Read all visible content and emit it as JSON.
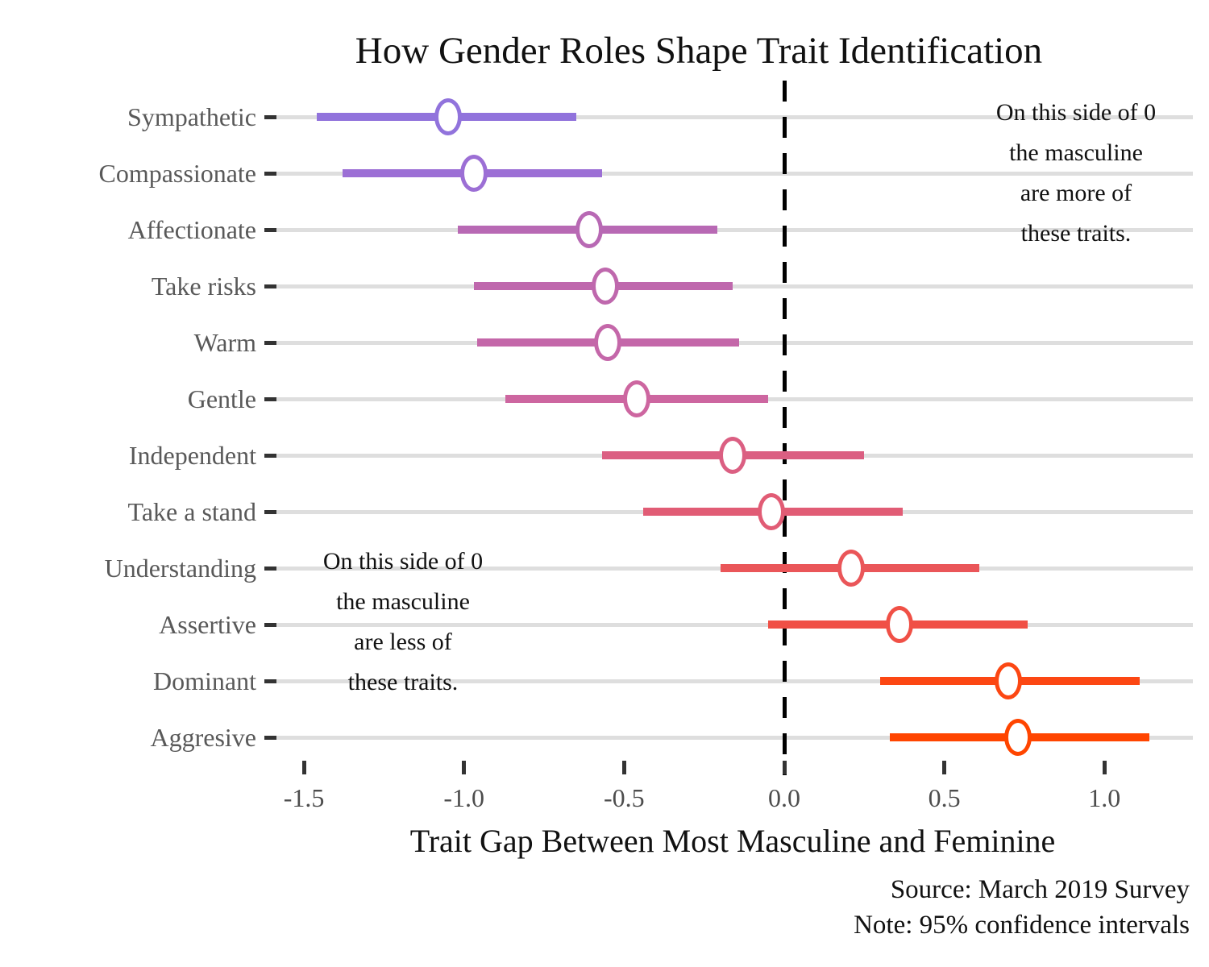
{
  "title": "How Gender Roles Shape Trait Identification",
  "xlabel": "Trait Gap Between Most Masculine and Feminine",
  "caption": {
    "source": "Source: March 2019 Survey",
    "note": "Note: 95% confidence intervals"
  },
  "annotations": {
    "right": [
      "On this side of 0",
      "the masculine",
      "are more of",
      "these traits."
    ],
    "left": [
      "On this side of 0",
      "the masculine",
      "are less of",
      "these traits."
    ]
  },
  "chart_data": {
    "type": "scatter",
    "subtype": "horizontal-dotplot-with-confidence-intervals",
    "title": "How Gender Roles Shape Trait Identification",
    "xlabel": "Trait Gap Between Most Masculine and Feminine",
    "xlim": [
      -1.62,
      1.28
    ],
    "grid": true,
    "legend": false,
    "zero_reference_line": 0,
    "xticks": [
      {
        "value": -1.5,
        "label": "-1.5"
      },
      {
        "value": -1.0,
        "label": "-1.0"
      },
      {
        "value": -0.5,
        "label": "-0.5"
      },
      {
        "value": 0.0,
        "label": "0.0"
      },
      {
        "value": 0.5,
        "label": "0.5"
      },
      {
        "value": 1.0,
        "label": "1.0"
      }
    ],
    "categories": [
      "Sympathetic",
      "Compassionate",
      "Affectionate",
      "Take risks",
      "Warm",
      "Gentle",
      "Independent",
      "Take a stand",
      "Understanding",
      "Assertive",
      "Dominant",
      "Aggresive"
    ],
    "points": [
      {
        "trait": "Sympathetic",
        "estimate": -1.05,
        "ci_low": -1.46,
        "ci_high": -0.65,
        "color": "#9173DC"
      },
      {
        "trait": "Compassionate",
        "estimate": -0.97,
        "ci_low": -1.38,
        "ci_high": -0.57,
        "color": "#9C6FD5"
      },
      {
        "trait": "Affectionate",
        "estimate": -0.61,
        "ci_low": -1.02,
        "ci_high": -0.21,
        "color": "#B869B4"
      },
      {
        "trait": "Take risks",
        "estimate": -0.56,
        "ci_low": -0.97,
        "ci_high": -0.16,
        "color": "#BF68AD"
      },
      {
        "trait": "Warm",
        "estimate": -0.55,
        "ci_low": -0.96,
        "ci_high": -0.14,
        "color": "#C467A9"
      },
      {
        "trait": "Gentle",
        "estimate": -0.46,
        "ci_low": -0.87,
        "ci_high": -0.05,
        "color": "#CD66A0"
      },
      {
        "trait": "Independent",
        "estimate": -0.16,
        "ci_low": -0.57,
        "ci_high": 0.25,
        "color": "#DB5F82"
      },
      {
        "trait": "Take a stand",
        "estimate": -0.04,
        "ci_low": -0.44,
        "ci_high": 0.37,
        "color": "#E15C75"
      },
      {
        "trait": "Understanding",
        "estimate": 0.21,
        "ci_low": -0.2,
        "ci_high": 0.61,
        "color": "#EA5659"
      },
      {
        "trait": "Assertive",
        "estimate": 0.36,
        "ci_low": -0.05,
        "ci_high": 0.76,
        "color": "#F05046"
      },
      {
        "trait": "Dominant",
        "estimate": 0.7,
        "ci_low": 0.3,
        "ci_high": 1.11,
        "color": "#FC4713"
      },
      {
        "trait": "Aggresive",
        "estimate": 0.73,
        "ci_low": 0.33,
        "ci_high": 1.14,
        "color": "#FF4500"
      }
    ]
  }
}
